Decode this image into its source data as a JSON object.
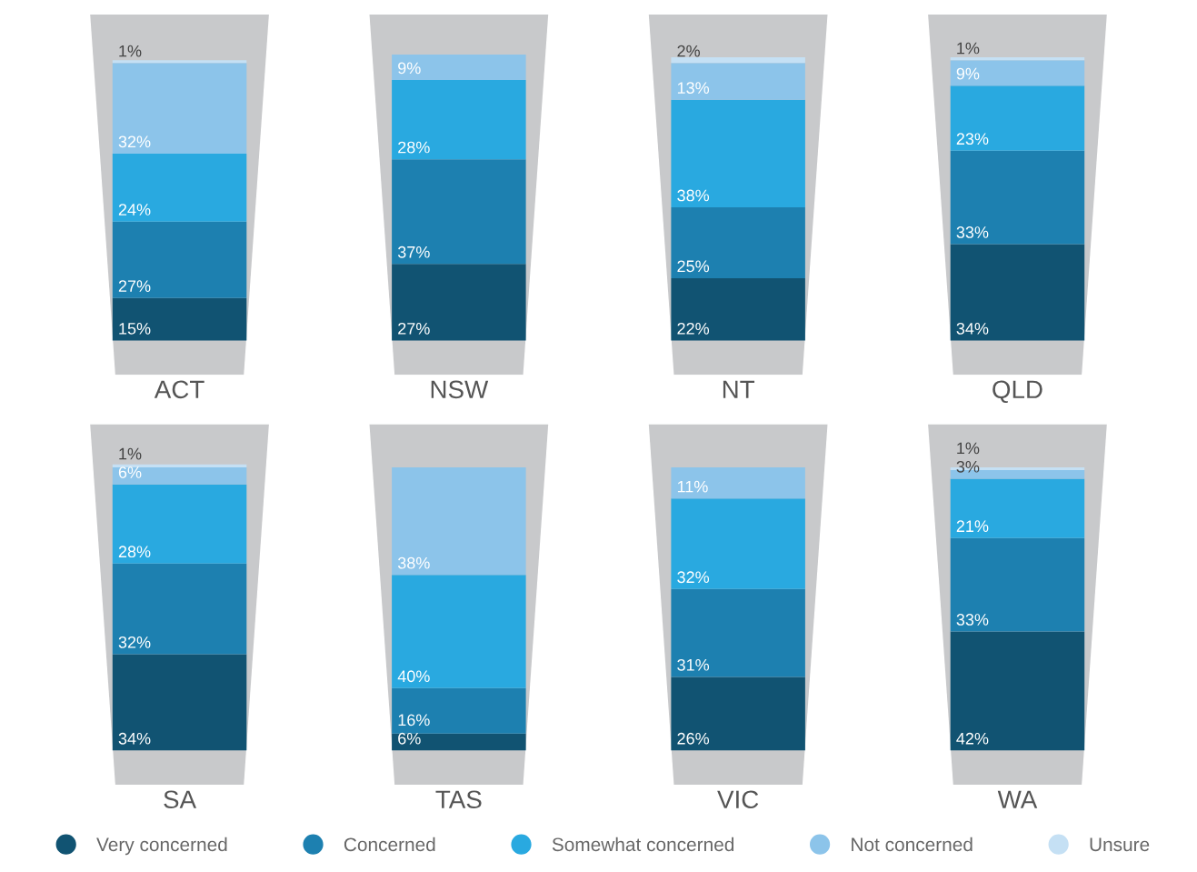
{
  "chart_data": [
    {
      "type": "bar",
      "stacked": true,
      "data_labels": true,
      "categories": [
        "ACT",
        "NSW",
        "NT",
        "QLD"
      ],
      "series": [
        {
          "color": "#115372",
          "values": [
            15,
            27,
            22,
            34
          ],
          "value_labels": [
            "15%",
            "27%",
            "22%",
            "34%"
          ]
        },
        {
          "color": "#1d80b0",
          "values": [
            27,
            37,
            25,
            33
          ],
          "value_labels": [
            "27%",
            "37%",
            "25%",
            "33%"
          ]
        },
        {
          "color": "#29a9e0",
          "values": [
            24,
            28,
            38,
            23
          ],
          "value_labels": [
            "24%",
            "28%",
            "38%",
            "23%"
          ]
        },
        {
          "color": "#8cc4ea",
          "values": [
            32,
            9,
            13,
            9
          ],
          "value_labels": [
            "32%",
            "9%",
            "13%",
            "9%"
          ]
        },
        {
          "color": "#c5e0f4",
          "values": [
            1,
            null,
            2,
            1
          ],
          "value_labels": [
            "1%",
            null,
            "2%",
            "1%"
          ]
        }
      ]
    },
    {
      "type": "bar",
      "stacked": true,
      "data_labels": true,
      "legend": "bottom",
      "categories": [
        "SA",
        "TAS",
        "VIC",
        "WA"
      ],
      "series": [
        {
          "name": "Very concerned",
          "color": "#115372",
          "values": [
            34,
            6,
            26,
            42
          ],
          "value_labels": [
            "34%",
            "6%",
            "26%",
            "42%"
          ]
        },
        {
          "name": "Concerned",
          "color": "#1d80b0",
          "values": [
            32,
            16,
            31,
            33
          ],
          "value_labels": [
            "32%",
            "16%",
            "31%",
            "33%"
          ]
        },
        {
          "name": "Somewhat concerned",
          "color": "#29a9e0",
          "values": [
            28,
            40,
            32,
            21
          ],
          "value_labels": [
            "28%",
            "40%",
            "32%",
            "21%"
          ]
        },
        {
          "name": "Not concerned",
          "color": "#8cc4ea",
          "values": [
            6,
            38,
            11,
            3
          ],
          "value_labels": [
            "6%",
            "38%",
            "11%",
            "3%"
          ]
        },
        {
          "name": "Unsure",
          "color": "#c5e0f4",
          "values": [
            1,
            null,
            null,
            1
          ],
          "value_labels": [
            "1%",
            null,
            null,
            "1%"
          ]
        }
      ]
    }
  ]
}
